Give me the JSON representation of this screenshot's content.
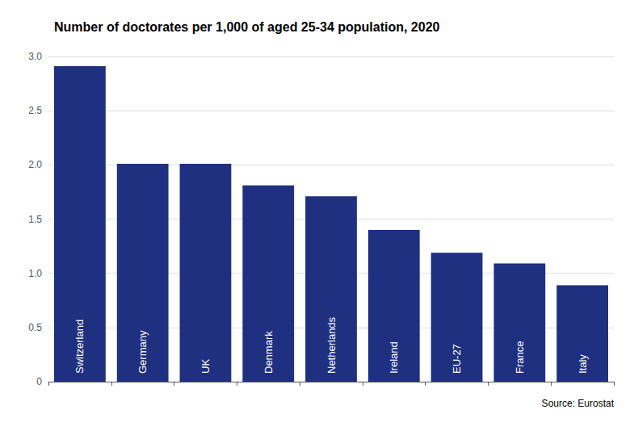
{
  "chart_data": {
    "type": "bar",
    "title": "Number of doctorates per 1,000 of aged 25-34 population, 2020",
    "categories": [
      "Switzerland",
      "Germany",
      "UK",
      "Denmark",
      "Netherlands",
      "Ireland",
      "EU-27",
      "France",
      "Italy"
    ],
    "values": [
      2.91,
      2.01,
      2.01,
      1.81,
      1.71,
      1.4,
      1.19,
      1.09,
      0.89
    ],
    "color": "#1F3080",
    "ylim": [
      0,
      3.0
    ],
    "yticks": [
      0,
      0.5,
      {
        "value": 1,
        "label": "1.0"
      },
      1.5,
      {
        "value": 2,
        "label": "2.0"
      },
      2.5,
      {
        "value": 3,
        "label": "3.0"
      }
    ],
    "grid": true,
    "tick_labels": "y",
    "annotation": "Source: Eurostat"
  }
}
